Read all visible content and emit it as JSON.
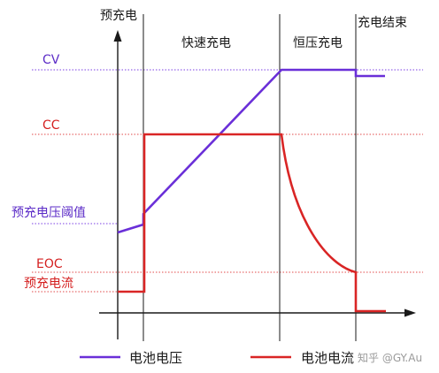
{
  "phases": {
    "precharge": "预充电",
    "fast_charge": "快速充电",
    "constant_voltage": "恒压充电",
    "charge_end": "充电结束"
  },
  "levels": {
    "cv": "CV",
    "cc": "CC",
    "precharge_voltage_threshold": "预充电压阈值",
    "eoc": "EOC",
    "precharge_current": "预充电流"
  },
  "legend": {
    "voltage": "电池电压",
    "current": "电池电流"
  },
  "colors": {
    "voltage": "#6a2fd8",
    "current": "#d92525",
    "cv_dotted": "#7b3fe4",
    "red_dotted": "#e24a4a"
  },
  "watermark": "知乎 @GY.Au"
}
